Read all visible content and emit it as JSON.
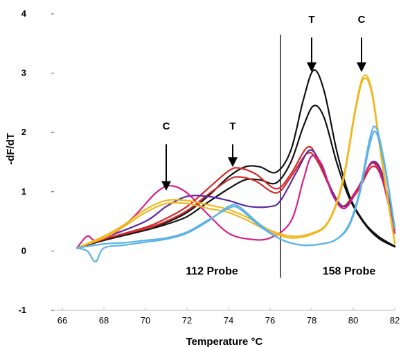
{
  "chart_data": {
    "type": "line",
    "xlabel": "Temperature °C",
    "ylabel": "-dF/dT",
    "xlim": [
      66,
      82
    ],
    "ylim": [
      -1,
      4
    ],
    "x_ticks": [
      "66",
      "68",
      "70",
      "72",
      "74",
      "76",
      "78",
      "80",
      "82"
    ],
    "y_ticks": [
      "-1",
      "0",
      "1",
      "2",
      "3",
      "4"
    ],
    "grid": false,
    "divider_x": 76.5,
    "annotations": [
      {
        "text": "C",
        "x": 71,
        "label_y": 2.05,
        "arrow_from": 1.8,
        "arrow_to": 1.05
      },
      {
        "text": "T",
        "x": 74.2,
        "label_y": 2.05,
        "arrow_from": 1.8,
        "arrow_to": 1.45
      },
      {
        "text": "T",
        "x": 78,
        "label_y": 3.85,
        "arrow_from": 3.6,
        "arrow_to": 3.05
      },
      {
        "text": "C",
        "x": 80.4,
        "label_y": 3.85,
        "arrow_from": 3.6,
        "arrow_to": 3.05
      }
    ],
    "probe_labels": [
      {
        "text": "112 Probe",
        "x": 73.2,
        "y": -0.4
      },
      {
        "text": "158 Probe",
        "x": 79.8,
        "y": -0.4
      }
    ],
    "series": [
      {
        "color": "#111111",
        "points": [
          [
            66.7,
            0.05
          ],
          [
            68,
            0.2
          ],
          [
            70,
            0.38
          ],
          [
            71,
            0.48
          ],
          [
            72,
            0.65
          ],
          [
            73,
            0.92
          ],
          [
            74,
            1.25
          ],
          [
            74.8,
            1.42
          ],
          [
            75.5,
            1.42
          ],
          [
            76.3,
            1.33
          ],
          [
            77,
            1.7
          ],
          [
            77.6,
            2.55
          ],
          [
            78.1,
            3.05
          ],
          [
            78.6,
            2.7
          ],
          [
            79.2,
            1.7
          ],
          [
            79.8,
            0.95
          ],
          [
            80.5,
            0.5
          ],
          [
            81.2,
            0.25
          ],
          [
            82,
            0.08
          ]
        ]
      },
      {
        "color": "#111111",
        "points": [
          [
            66.7,
            0.05
          ],
          [
            68,
            0.18
          ],
          [
            70,
            0.35
          ],
          [
            71,
            0.45
          ],
          [
            72,
            0.58
          ],
          [
            73,
            0.82
          ],
          [
            74,
            1.05
          ],
          [
            74.8,
            1.2
          ],
          [
            75.5,
            1.2
          ],
          [
            76.3,
            1.15
          ],
          [
            77,
            1.5
          ],
          [
            77.6,
            2.1
          ],
          [
            78.1,
            2.45
          ],
          [
            78.6,
            2.25
          ],
          [
            79.2,
            1.5
          ],
          [
            79.8,
            0.9
          ],
          [
            80.5,
            0.48
          ],
          [
            81.2,
            0.22
          ],
          [
            82,
            0.07
          ]
        ]
      },
      {
        "color": "#d42a2a",
        "points": [
          [
            66.7,
            0.05
          ],
          [
            68,
            0.2
          ],
          [
            70,
            0.4
          ],
          [
            71,
            0.55
          ],
          [
            72,
            0.75
          ],
          [
            73,
            1.05
          ],
          [
            74,
            1.35
          ],
          [
            74.5,
            1.4
          ],
          [
            75.3,
            1.3
          ],
          [
            76.3,
            1.05
          ],
          [
            77,
            1.3
          ],
          [
            77.8,
            1.75
          ],
          [
            78.3,
            1.55
          ],
          [
            79,
            1.0
          ],
          [
            79.5,
            0.75
          ],
          [
            80.2,
            1.05
          ],
          [
            80.9,
            1.48
          ],
          [
            81.4,
            1.25
          ],
          [
            82,
            0.35
          ]
        ]
      },
      {
        "color": "#d42a2a",
        "points": [
          [
            66.7,
            0.05
          ],
          [
            68,
            0.2
          ],
          [
            70,
            0.38
          ],
          [
            71,
            0.5
          ],
          [
            72,
            0.68
          ],
          [
            73,
            0.95
          ],
          [
            74,
            1.2
          ],
          [
            74.5,
            1.25
          ],
          [
            75.3,
            1.18
          ],
          [
            76.3,
            0.98
          ],
          [
            77,
            1.25
          ],
          [
            77.8,
            1.65
          ],
          [
            78.3,
            1.5
          ],
          [
            79,
            0.98
          ],
          [
            79.5,
            0.75
          ],
          [
            80.2,
            1.0
          ],
          [
            80.9,
            1.42
          ],
          [
            81.4,
            1.2
          ],
          [
            82,
            0.3
          ]
        ]
      },
      {
        "color": "#5b2a9e",
        "points": [
          [
            66.7,
            0.05
          ],
          [
            68,
            0.22
          ],
          [
            70,
            0.5
          ],
          [
            71,
            0.75
          ],
          [
            72,
            0.92
          ],
          [
            73,
            0.92
          ],
          [
            74,
            0.85
          ],
          [
            75,
            0.75
          ],
          [
            76,
            0.75
          ],
          [
            76.5,
            0.85
          ],
          [
            77.3,
            1.35
          ],
          [
            77.9,
            1.7
          ],
          [
            78.4,
            1.5
          ],
          [
            79,
            1.0
          ],
          [
            79.6,
            0.75
          ],
          [
            80.3,
            1.1
          ],
          [
            80.9,
            1.5
          ],
          [
            81.4,
            1.3
          ],
          [
            82,
            0.4
          ]
        ]
      },
      {
        "color": "#d61e88",
        "points": [
          [
            66.7,
            0.05
          ],
          [
            67.2,
            0.25
          ],
          [
            67.6,
            0.18
          ],
          [
            68.5,
            0.3
          ],
          [
            69.5,
            0.6
          ],
          [
            70.5,
            0.98
          ],
          [
            71.2,
            1.1
          ],
          [
            72,
            0.98
          ],
          [
            73,
            0.62
          ],
          [
            74,
            0.3
          ],
          [
            75,
            0.2
          ],
          [
            76,
            0.22
          ],
          [
            77,
            0.5
          ],
          [
            77.6,
            1.2
          ],
          [
            78,
            1.6
          ],
          [
            78.5,
            1.45
          ],
          [
            79,
            0.95
          ],
          [
            79.6,
            0.72
          ],
          [
            80.3,
            1.1
          ],
          [
            80.9,
            1.48
          ],
          [
            81.4,
            1.2
          ],
          [
            82,
            0.3
          ]
        ]
      },
      {
        "color": "#f0b81e",
        "points": [
          [
            66.7,
            0.05
          ],
          [
            68,
            0.25
          ],
          [
            69,
            0.45
          ],
          [
            70,
            0.7
          ],
          [
            71,
            0.85
          ],
          [
            72,
            0.85
          ],
          [
            73,
            0.78
          ],
          [
            74,
            0.7
          ],
          [
            75,
            0.55
          ],
          [
            76,
            0.35
          ],
          [
            77,
            0.25
          ],
          [
            78,
            0.3
          ],
          [
            78.8,
            0.5
          ],
          [
            79.5,
            1.2
          ],
          [
            80.1,
            2.4
          ],
          [
            80.5,
            2.95
          ],
          [
            80.9,
            2.7
          ],
          [
            81.4,
            1.5
          ],
          [
            82,
            0.15
          ]
        ]
      },
      {
        "color": "#f0b81e",
        "points": [
          [
            66.7,
            0.05
          ],
          [
            68,
            0.22
          ],
          [
            69,
            0.42
          ],
          [
            70,
            0.65
          ],
          [
            71,
            0.8
          ],
          [
            72,
            0.8
          ],
          [
            73,
            0.72
          ],
          [
            74,
            0.65
          ],
          [
            75,
            0.5
          ],
          [
            76,
            0.32
          ],
          [
            77,
            0.22
          ],
          [
            78,
            0.28
          ],
          [
            78.8,
            0.48
          ],
          [
            79.5,
            1.15
          ],
          [
            80.1,
            2.35
          ],
          [
            80.5,
            2.9
          ],
          [
            80.9,
            2.65
          ],
          [
            81.4,
            1.45
          ],
          [
            82,
            0.12
          ]
        ]
      },
      {
        "color": "#5bb3e6",
        "points": [
          [
            66.7,
            0.05
          ],
          [
            67.2,
            0.0
          ],
          [
            67.6,
            -0.18
          ],
          [
            68,
            0.05
          ],
          [
            69,
            0.1
          ],
          [
            70,
            0.15
          ],
          [
            71,
            0.2
          ],
          [
            72,
            0.3
          ],
          [
            73,
            0.5
          ],
          [
            74,
            0.75
          ],
          [
            74.5,
            0.75
          ],
          [
            75.5,
            0.45
          ],
          [
            76.5,
            0.2
          ],
          [
            77.5,
            0.1
          ],
          [
            78.5,
            0.12
          ],
          [
            79.2,
            0.2
          ],
          [
            79.8,
            0.45
          ],
          [
            80.3,
            1.0
          ],
          [
            80.8,
            1.9
          ],
          [
            81.1,
            2.08
          ],
          [
            81.5,
            1.5
          ],
          [
            82,
            0.4
          ]
        ]
      },
      {
        "color": "#5bb3e6",
        "points": [
          [
            66.7,
            0.05
          ],
          [
            68,
            0.12
          ],
          [
            69,
            0.14
          ],
          [
            70,
            0.18
          ],
          [
            71,
            0.22
          ],
          [
            72,
            0.32
          ],
          [
            73,
            0.52
          ],
          [
            74,
            0.72
          ],
          [
            74.5,
            0.72
          ],
          [
            75.5,
            0.42
          ],
          [
            76.5,
            0.2
          ],
          [
            77.5,
            0.1
          ],
          [
            78.5,
            0.12
          ],
          [
            79.2,
            0.2
          ],
          [
            79.8,
            0.42
          ],
          [
            80.3,
            0.95
          ],
          [
            80.8,
            1.8
          ],
          [
            81.1,
            2.0
          ],
          [
            81.5,
            1.45
          ],
          [
            82,
            0.38
          ]
        ]
      }
    ]
  }
}
